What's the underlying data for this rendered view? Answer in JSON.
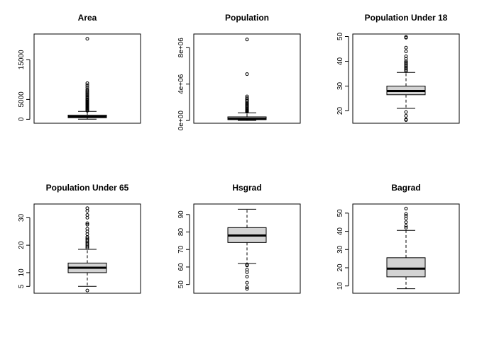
{
  "chart_data": [
    {
      "type": "boxplot",
      "title": "Area",
      "ylim": [
        -1000,
        21500
      ],
      "ticks": [
        {
          "value": 0,
          "label": "0"
        },
        {
          "value": 5000,
          "label": "5000"
        },
        {
          "value": 15000,
          "label": "15000"
        }
      ],
      "box": {
        "lower_whisker": 20,
        "q1": 400,
        "median": 650,
        "q3": 1050,
        "upper_whisker": 2000
      },
      "outliers": [
        2150,
        2300,
        2500,
        2700,
        2900,
        3100,
        3300,
        3500,
        3700,
        3900,
        4100,
        4300,
        4500,
        4700,
        4900,
        5100,
        5400,
        5700,
        6000,
        6300,
        6600,
        6900,
        7200,
        7600,
        8100,
        8600,
        9100,
        20300
      ]
    },
    {
      "type": "boxplot",
      "title": "Population",
      "ylim": [
        -300000,
        9500000
      ],
      "ticks": [
        {
          "value": 0,
          "label": "0e+00"
        },
        {
          "value": 4000000,
          "label": "4e+06"
        },
        {
          "value": 8000000,
          "label": "8e+06"
        }
      ],
      "box": {
        "lower_whisker": 10000,
        "q1": 100000,
        "median": 190000,
        "q3": 400000,
        "upper_whisker": 850000
      },
      "outliers": [
        950000,
        1000000,
        1050000,
        1100000,
        1150000,
        1200000,
        1300000,
        1400000,
        1500000,
        1600000,
        1700000,
        1800000,
        1900000,
        2000000,
        2150000,
        2300000,
        2450000,
        2650000,
        5100000,
        8900000
      ]
    },
    {
      "type": "boxplot",
      "title": "Population Under 18",
      "ylim": [
        15,
        51
      ],
      "ticks": [
        {
          "value": 20,
          "label": "20"
        },
        {
          "value": 30,
          "label": "30"
        },
        {
          "value": 40,
          "label": "40"
        },
        {
          "value": 50,
          "label": "50"
        }
      ],
      "box": {
        "lower_whisker": 21,
        "q1": 26.5,
        "median": 28,
        "q3": 30,
        "upper_whisker": 35.5
      },
      "outliers": [
        36,
        36.5,
        37,
        37.5,
        38,
        38.5,
        39,
        39.5,
        40,
        41,
        42,
        44,
        45.5,
        49.5,
        49.8,
        19.5,
        18,
        16.5,
        16.3
      ]
    },
    {
      "type": "boxplot",
      "title": "Population Under 65",
      "ylim": [
        2.5,
        35
      ],
      "ticks": [
        {
          "value": 5,
          "label": "5"
        },
        {
          "value": 10,
          "label": "10"
        },
        {
          "value": 20,
          "label": "20"
        },
        {
          "value": 30,
          "label": "30"
        }
      ],
      "box": {
        "lower_whisker": 5,
        "q1": 10,
        "median": 11.8,
        "q3": 13.5,
        "upper_whisker": 18.5
      },
      "outliers": [
        19,
        19.5,
        20,
        20.5,
        21,
        21.5,
        22,
        22.5,
        23,
        24,
        25,
        26,
        27.5,
        28,
        30,
        31,
        32.5,
        33.5,
        3.5
      ]
    },
    {
      "type": "boxplot",
      "title": "Hsgrad",
      "ylim": [
        45,
        96
      ],
      "ticks": [
        {
          "value": 50,
          "label": "50"
        },
        {
          "value": 60,
          "label": "60"
        },
        {
          "value": 70,
          "label": "70"
        },
        {
          "value": 80,
          "label": "80"
        },
        {
          "value": 90,
          "label": "90"
        }
      ],
      "box": {
        "lower_whisker": 62,
        "q1": 74,
        "median": 78,
        "q3": 82.5,
        "upper_whisker": 93
      },
      "outliers": [
        61.3,
        61.1,
        60.9,
        58.5,
        57,
        54.5,
        51,
        48.5,
        47.5
      ]
    },
    {
      "type": "boxplot",
      "title": "Bagrad",
      "ylim": [
        6,
        55
      ],
      "ticks": [
        {
          "value": 10,
          "label": "10"
        },
        {
          "value": 20,
          "label": "20"
        },
        {
          "value": 30,
          "label": "30"
        },
        {
          "value": 40,
          "label": "40"
        },
        {
          "value": 50,
          "label": "50"
        }
      ],
      "box": {
        "lower_whisker": 8.5,
        "q1": 15,
        "median": 19.5,
        "q3": 25.5,
        "upper_whisker": 40.5
      },
      "outliers": [
        42,
        43,
        45,
        47,
        48.5,
        49.5,
        52.5
      ]
    }
  ]
}
